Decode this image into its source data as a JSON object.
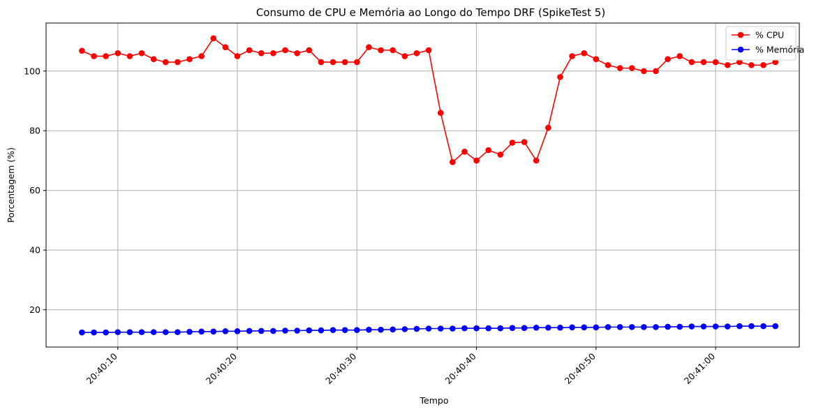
{
  "chart_data": {
    "type": "line",
    "title": "Consumo de CPU e Memória ao Longo do Tempo DRF (SpikeTest 5)",
    "xlabel": "Tempo",
    "ylabel": "Porcentagem (%)",
    "grid": true,
    "legend_position": "top-right",
    "x_start": "20:40:07",
    "x_step_seconds": 1,
    "xlim": [
      "20:40:04",
      "20:41:07"
    ],
    "ylim": [
      7.5,
      116.1
    ],
    "x_ticks": [
      "20:40:10",
      "20:40:20",
      "20:40:30",
      "20:40:40",
      "20:40:50",
      "20:41:00"
    ],
    "y_ticks": [
      20,
      40,
      60,
      80,
      100
    ],
    "series": [
      {
        "name": "% CPU",
        "color": "#ff0000",
        "values": [
          106.8,
          105,
          105,
          106,
          105,
          106,
          104,
          103,
          103,
          104,
          105,
          111,
          108,
          105,
          107,
          106,
          106,
          107,
          106,
          107,
          103,
          103,
          103,
          103,
          108,
          107,
          107,
          105,
          106,
          107,
          86,
          69.5,
          73,
          70,
          73.5,
          72,
          76,
          76.2,
          70,
          81,
          98,
          105,
          106,
          104,
          102,
          101,
          101,
          100,
          100,
          104,
          105,
          103,
          103,
          103,
          102,
          103,
          102,
          102,
          103
        ]
      },
      {
        "name": "% Memória",
        "color": "#0000ff",
        "values": [
          12.4,
          12.4,
          12.4,
          12.5,
          12.5,
          12.5,
          12.5,
          12.5,
          12.5,
          12.6,
          12.7,
          12.7,
          12.8,
          12.8,
          12.9,
          12.9,
          12.9,
          13,
          13,
          13.1,
          13.1,
          13.2,
          13.2,
          13.2,
          13.3,
          13.3,
          13.4,
          13.5,
          13.6,
          13.7,
          13.7,
          13.7,
          13.8,
          13.8,
          13.8,
          13.8,
          13.9,
          13.9,
          14,
          14,
          14,
          14.1,
          14.1,
          14.1,
          14.2,
          14.2,
          14.2,
          14.2,
          14.2,
          14.3,
          14.3,
          14.4,
          14.4,
          14.4,
          14.4,
          14.5,
          14.5,
          14.5,
          14.5
        ]
      }
    ]
  }
}
